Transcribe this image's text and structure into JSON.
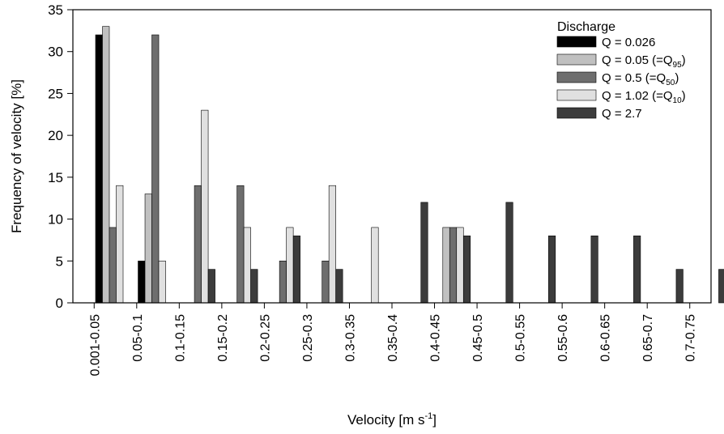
{
  "chart_data": {
    "type": "bar",
    "xlabel": "Velocity [m s",
    "xlabel_sup": "-1",
    "xlabel_end": "]",
    "ylabel": "Frequency  of velocity [%]",
    "ylim": [
      0,
      35
    ],
    "yticks": [
      0,
      5,
      10,
      15,
      20,
      25,
      30,
      35
    ],
    "grid": false,
    "legend_title": "Discharge",
    "legend_position": "top-right",
    "categories": [
      "0.001-0.05",
      "0.05-0.1",
      "0.1-0.15",
      "0.15-0.2",
      "0.2-0.25",
      "0.25-0.3",
      "0.3-0.35",
      "0.35-0.4",
      "0.4-0.45",
      "0.45-0.5",
      "0.5-0.55",
      "0.55-0.6",
      "0.6-0.65",
      "0.65-0.7",
      "0.7-0.75"
    ],
    "series": [
      {
        "name": "Q = 0.026",
        "sub": "",
        "name_end": "",
        "color": "#000000",
        "values": [
          32,
          5,
          0,
          0,
          0,
          0,
          0,
          0,
          0,
          0,
          0,
          0,
          0,
          0,
          0
        ]
      },
      {
        "name": "Q = 0.05 (=Q",
        "sub": "95",
        "name_end": ")",
        "color": "#c0c0c0",
        "values": [
          33,
          13,
          0,
          0,
          0,
          0,
          0,
          0,
          9,
          0,
          0,
          0,
          0,
          0,
          0
        ]
      },
      {
        "name": "Q = 0.5  (=Q",
        "sub": "50",
        "name_end": ")",
        "color": "#6e6e6e",
        "values": [
          9,
          32,
          14,
          14,
          5,
          5,
          0,
          0,
          9,
          0,
          0,
          0,
          0,
          0,
          0
        ]
      },
      {
        "name": "Q = 1.02  (=Q",
        "sub": "10",
        "name_end": ")",
        "color": "#e0e0e0",
        "values": [
          14,
          5,
          23,
          9,
          9,
          14,
          9,
          0,
          9,
          0,
          0,
          0,
          0,
          0,
          0
        ]
      },
      {
        "name": "Q = 2.7",
        "sub": "",
        "name_end": "",
        "color": "#3c3c3c",
        "values": [
          0,
          0,
          4,
          4,
          8,
          4,
          0,
          12,
          8,
          12,
          8,
          8,
          8,
          4,
          4
        ]
      }
    ]
  }
}
